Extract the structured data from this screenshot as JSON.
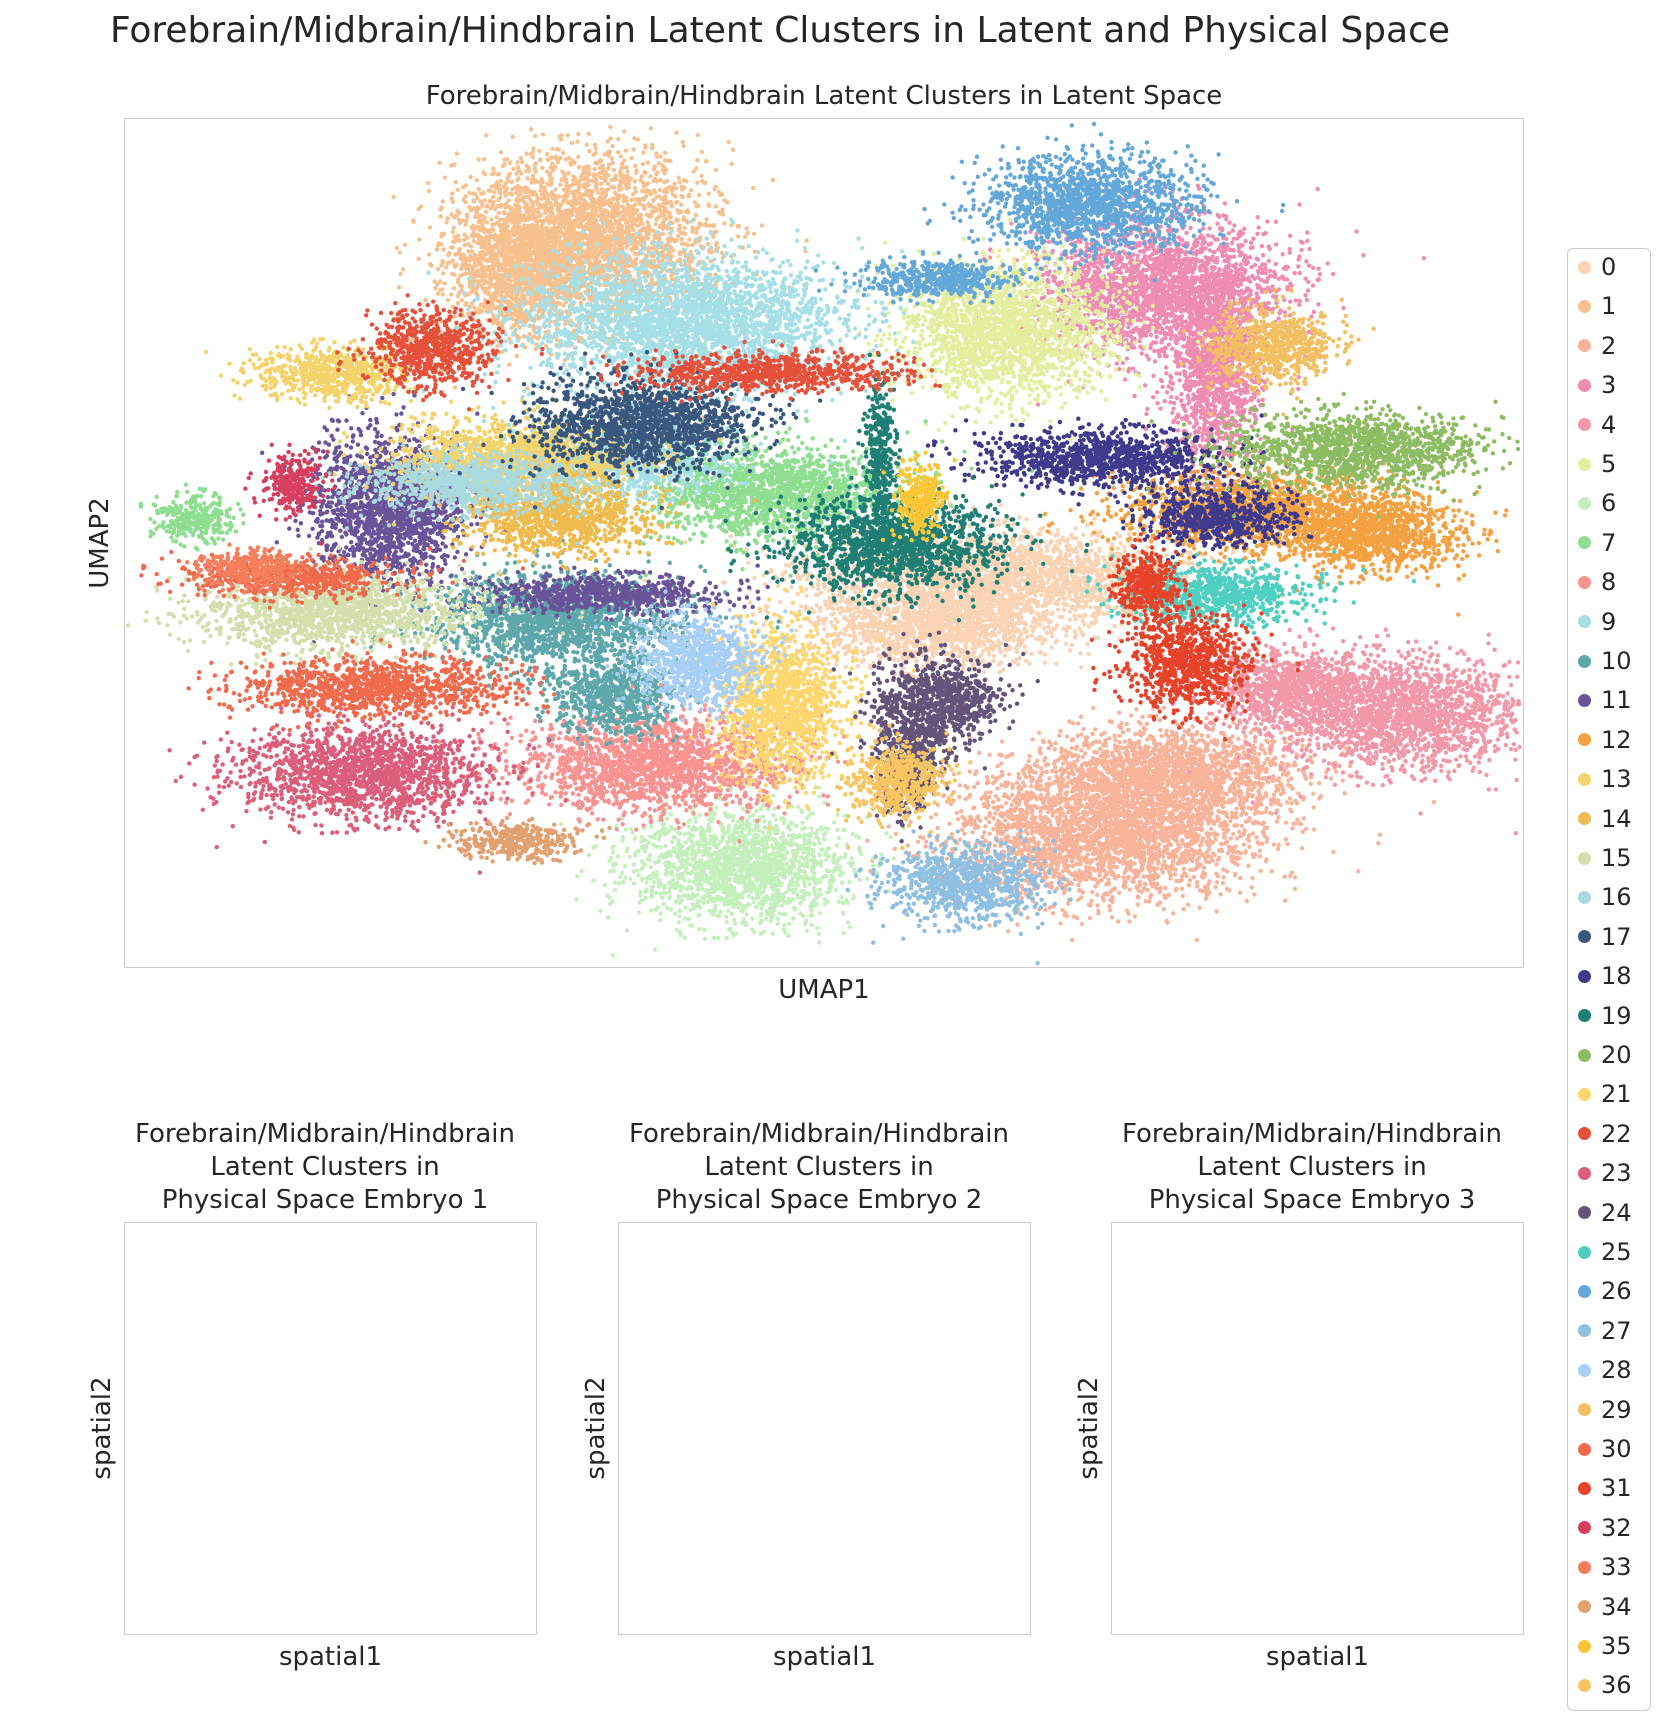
{
  "suptitle": "Forebrain/Midbrain/Hindbrain Latent Clusters in Latent and Physical Space",
  "chart_data": [
    {
      "type": "scatter",
      "title": "Forebrain/Midbrain/Hindbrain Latent Clusters in Latent Space",
      "xlabel": "UMAP1",
      "ylabel": "UMAP2",
      "grid": false,
      "legend_placement": "right",
      "clusters": [
        {
          "name": "0",
          "color": "#f9d3b4",
          "regions": [
            [
              0.62,
              0.54,
              0.12,
              0.05
            ],
            [
              0.58,
              0.6,
              0.08,
              0.04
            ]
          ]
        },
        {
          "name": "1",
          "color": "#f7c18f",
          "regions": [
            [
              0.33,
              0.14,
              0.08,
              0.09
            ],
            [
              0.28,
              0.18,
              0.04,
              0.07
            ]
          ]
        },
        {
          "name": "2",
          "color": "#f7b49a",
          "regions": [
            [
              0.7,
              0.84,
              0.1,
              0.07
            ],
            [
              0.75,
              0.77,
              0.08,
              0.05
            ]
          ]
        },
        {
          "name": "3",
          "color": "#ef8cb1",
          "regions": [
            [
              0.74,
              0.2,
              0.08,
              0.07
            ],
            [
              0.78,
              0.3,
              0.03,
              0.1
            ]
          ]
        },
        {
          "name": "4",
          "color": "#f199a8",
          "regions": [
            [
              0.91,
              0.7,
              0.08,
              0.06
            ],
            [
              0.83,
              0.67,
              0.05,
              0.04
            ]
          ]
        },
        {
          "name": "5",
          "color": "#e3ee9f",
          "regions": [
            [
              0.63,
              0.25,
              0.07,
              0.07
            ]
          ]
        },
        {
          "name": "6",
          "color": "#c5efbd",
          "regions": [
            [
              0.44,
              0.88,
              0.07,
              0.06
            ]
          ]
        },
        {
          "name": "7",
          "color": "#8fde91",
          "regions": [
            [
              0.46,
              0.44,
              0.08,
              0.05
            ],
            [
              0.05,
              0.47,
              0.025,
              0.025
            ]
          ]
        },
        {
          "name": "8",
          "color": "#f99391",
          "regions": [
            [
              0.38,
              0.76,
              0.09,
              0.05
            ]
          ]
        },
        {
          "name": "9",
          "color": "#a6dfe5",
          "regions": [
            [
              0.4,
              0.24,
              0.1,
              0.07
            ],
            [
              0.35,
              0.4,
              0.07,
              0.04
            ]
          ]
        },
        {
          "name": "10",
          "color": "#5ea7ab",
          "regions": [
            [
              0.31,
              0.59,
              0.08,
              0.05
            ],
            [
              0.35,
              0.68,
              0.04,
              0.04
            ]
          ]
        },
        {
          "name": "11",
          "color": "#6a5499",
          "regions": [
            [
              0.19,
              0.46,
              0.05,
              0.08
            ],
            [
              0.34,
              0.56,
              0.08,
              0.02
            ]
          ]
        },
        {
          "name": "12",
          "color": "#f4a241",
          "regions": [
            [
              0.81,
              0.46,
              0.09,
              0.04
            ],
            [
              0.89,
              0.49,
              0.06,
              0.04
            ]
          ]
        },
        {
          "name": "13",
          "color": "#f3d36b",
          "regions": [
            [
              0.15,
              0.3,
              0.05,
              0.03
            ],
            [
              0.28,
              0.4,
              0.08,
              0.04
            ]
          ]
        },
        {
          "name": "14",
          "color": "#f0bb4f",
          "regions": [
            [
              0.31,
              0.47,
              0.06,
              0.04
            ]
          ]
        },
        {
          "name": "15",
          "color": "#d3e0ad",
          "regions": [
            [
              0.15,
              0.58,
              0.09,
              0.04
            ]
          ]
        },
        {
          "name": "16",
          "color": "#a9dadf",
          "regions": [
            [
              0.25,
              0.43,
              0.07,
              0.03
            ]
          ]
        },
        {
          "name": "17",
          "color": "#3a587e",
          "regions": [
            [
              0.37,
              0.36,
              0.07,
              0.05
            ]
          ]
        },
        {
          "name": "18",
          "color": "#3f3a8c",
          "regions": [
            [
              0.7,
              0.4,
              0.08,
              0.03
            ],
            [
              0.78,
              0.47,
              0.05,
              0.03
            ]
          ]
        },
        {
          "name": "19",
          "color": "#1f7f74",
          "regions": [
            [
              0.55,
              0.5,
              0.07,
              0.05
            ],
            [
              0.54,
              0.4,
              0.01,
              0.08
            ]
          ]
        },
        {
          "name": "20",
          "color": "#8ebc62",
          "regions": [
            [
              0.88,
              0.39,
              0.08,
              0.04
            ]
          ]
        },
        {
          "name": "21",
          "color": "#fdd66f",
          "regions": [
            [
              0.47,
              0.69,
              0.04,
              0.08
            ]
          ]
        },
        {
          "name": "22",
          "color": "#e6513b",
          "regions": [
            [
              0.46,
              0.3,
              0.09,
              0.02
            ],
            [
              0.22,
              0.27,
              0.04,
              0.04
            ]
          ]
        },
        {
          "name": "23",
          "color": "#db5e7b",
          "regions": [
            [
              0.17,
              0.77,
              0.08,
              0.05
            ]
          ]
        },
        {
          "name": "24",
          "color": "#655479",
          "regions": [
            [
              0.58,
              0.69,
              0.04,
              0.05
            ],
            [
              0.56,
              0.76,
              0.02,
              0.05
            ]
          ]
        },
        {
          "name": "25",
          "color": "#4ecfc1",
          "regions": [
            [
              0.78,
              0.56,
              0.06,
              0.03
            ]
          ]
        },
        {
          "name": "26",
          "color": "#64a7d9",
          "regions": [
            [
              0.69,
              0.1,
              0.07,
              0.05
            ],
            [
              0.58,
              0.19,
              0.05,
              0.02
            ]
          ]
        },
        {
          "name": "27",
          "color": "#8fbfe1",
          "regions": [
            [
              0.6,
              0.9,
              0.05,
              0.04
            ]
          ]
        },
        {
          "name": "28",
          "color": "#a8cff6",
          "regions": [
            [
              0.41,
              0.64,
              0.04,
              0.05
            ]
          ]
        },
        {
          "name": "29",
          "color": "#f2c063",
          "regions": [
            [
              0.82,
              0.27,
              0.04,
              0.04
            ]
          ]
        },
        {
          "name": "30",
          "color": "#f16a4d",
          "regions": [
            [
              0.12,
              0.54,
              0.07,
              0.02
            ],
            [
              0.18,
              0.67,
              0.09,
              0.03
            ]
          ]
        },
        {
          "name": "31",
          "color": "#e8432a",
          "regions": [
            [
              0.76,
              0.64,
              0.04,
              0.05
            ],
            [
              0.73,
              0.55,
              0.02,
              0.04
            ]
          ]
        },
        {
          "name": "32",
          "color": "#d63f5f",
          "regions": [
            [
              0.12,
              0.43,
              0.02,
              0.03
            ]
          ]
        },
        {
          "name": "33",
          "color": "#f57f5d",
          "regions": [
            [
              0.09,
              0.53,
              0.03,
              0.02
            ]
          ]
        },
        {
          "name": "34",
          "color": "#e2a171",
          "regions": [
            [
              0.28,
              0.85,
              0.04,
              0.02
            ]
          ]
        },
        {
          "name": "35",
          "color": "#fbc637",
          "regions": [
            [
              0.57,
              0.45,
              0.015,
              0.04
            ]
          ]
        },
        {
          "name": "36",
          "color": "#f8c560",
          "regions": [
            [
              0.55,
              0.78,
              0.03,
              0.04
            ]
          ]
        }
      ]
    },
    {
      "type": "scatter",
      "title": "Forebrain/Midbrain/Hindbrain\nLatent Clusters in\n Physical Space Embryo 1",
      "xlabel": "spatial1",
      "ylabel": "spatial2"
    },
    {
      "type": "scatter",
      "title": "Forebrain/Midbrain/Hindbrain\nLatent Clusters in\n Physical Space Embryo 2",
      "xlabel": "spatial1",
      "ylabel": "spatial2"
    },
    {
      "type": "scatter",
      "title": "Forebrain/Midbrain/Hindbrain\nLatent Clusters in\n Physical Space Embryo 3",
      "xlabel": "spatial1",
      "ylabel": "spatial2"
    }
  ]
}
